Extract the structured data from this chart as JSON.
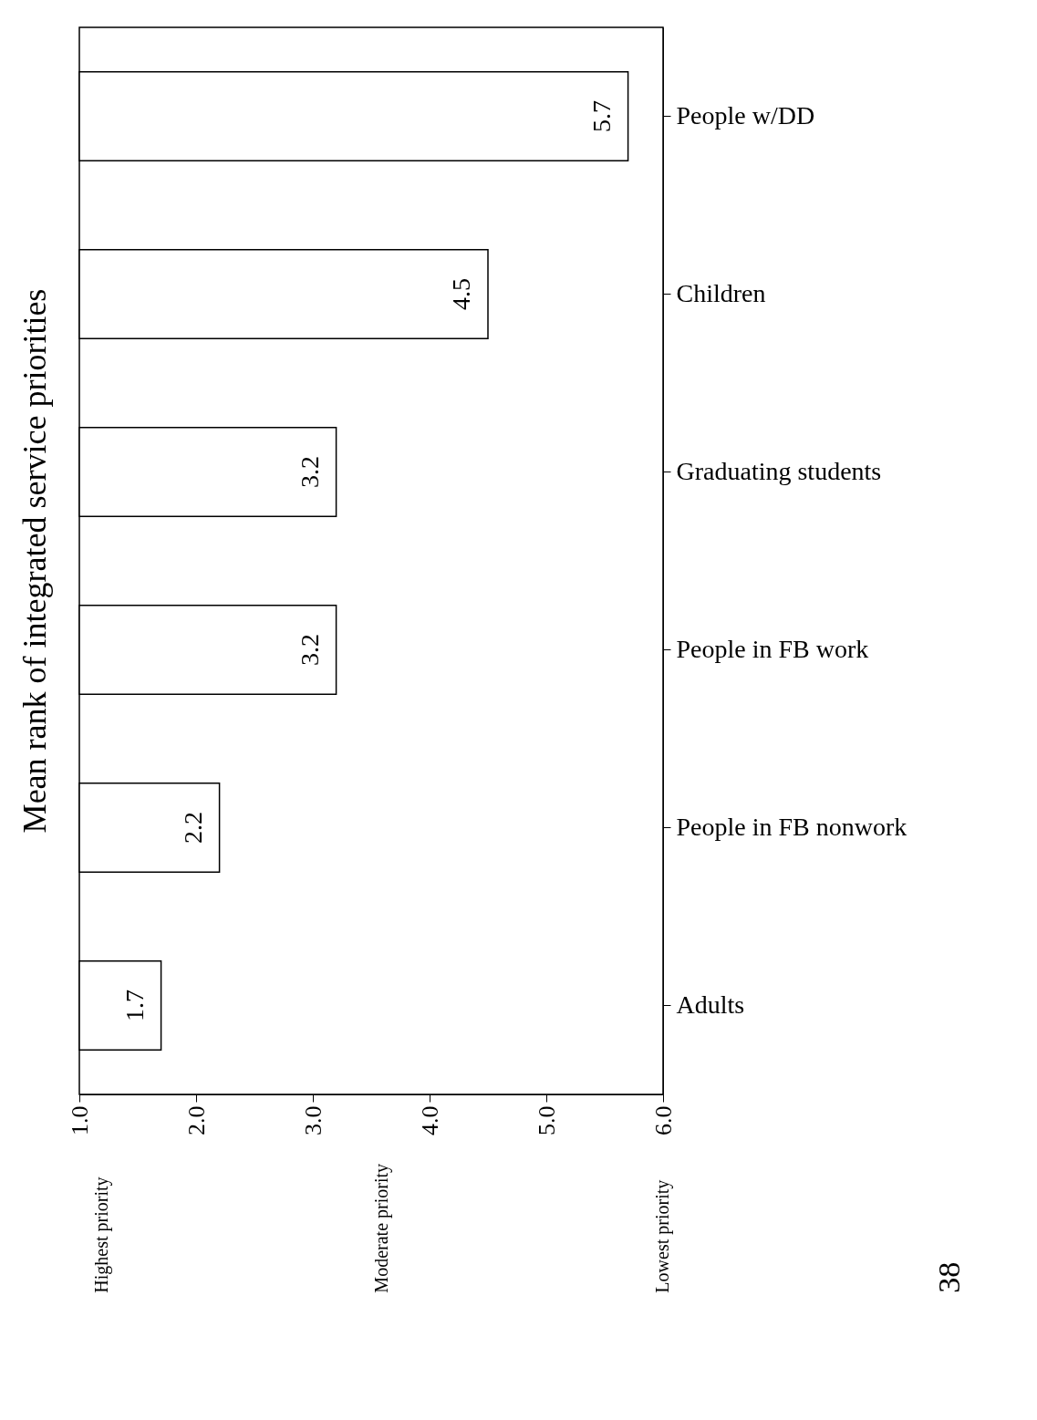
{
  "chart_data": {
    "type": "bar",
    "orientation": "horizontal",
    "title": "Mean rank of integrated service priorities",
    "categories": [
      "People w/DD",
      "Children",
      "Graduating students",
      "People in FB work",
      "People in FB nonwork",
      "Adults"
    ],
    "values": [
      5.7,
      4.5,
      3.2,
      3.2,
      2.2,
      1.7
    ],
    "color": "#ffffff",
    "data_labels": true,
    "xlim": [
      1,
      6
    ],
    "xticks": [
      {
        "value": 1,
        "label": "1.0"
      },
      {
        "value": 2,
        "label": "2.0"
      },
      {
        "value": 3,
        "label": "3.0"
      },
      {
        "value": 4,
        "label": "4.0"
      },
      {
        "value": 5,
        "label": "5.0"
      },
      {
        "value": 6,
        "label": "6.0"
      }
    ],
    "grid": false,
    "annotations": [
      "Highest priority",
      "Moderate priority",
      "Lowest priority",
      "38"
    ]
  }
}
